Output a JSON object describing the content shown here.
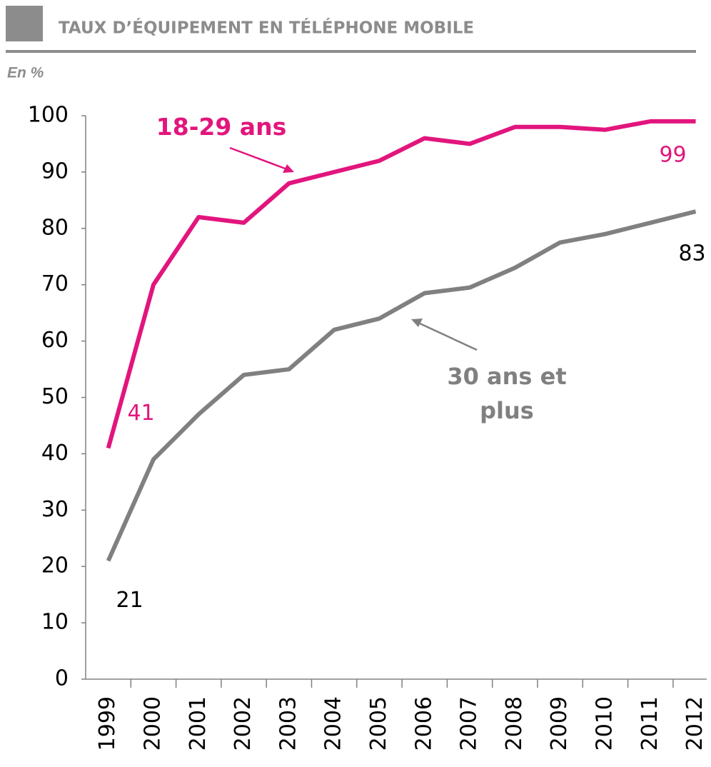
{
  "chart_data": {
    "type": "line",
    "title": "TAUX D’ÉQUIPEMENT EN TÉLÉPHONE MOBILE",
    "y_unit": "En %",
    "categories": [
      "1999",
      "2000",
      "2001",
      "2002",
      "2003",
      "2004",
      "2005",
      "2006",
      "2007",
      "2008",
      "2009",
      "2010",
      "2011",
      "2012"
    ],
    "series": [
      {
        "name": "18-29 ans",
        "color": "#e2157d",
        "values": [
          41,
          70,
          82,
          81,
          88,
          90,
          92,
          96,
          95,
          98,
          98,
          97.5,
          99,
          99
        ]
      },
      {
        "name": "30 ans et plus",
        "color": "#808080",
        "values": [
          21,
          39,
          47,
          54,
          55,
          62,
          64,
          68.5,
          69.5,
          73,
          77.5,
          79,
          81,
          83
        ]
      }
    ],
    "ylim": [
      0,
      100
    ],
    "yticks": [
      0,
      10,
      20,
      30,
      40,
      50,
      60,
      70,
      80,
      90,
      100
    ],
    "grid": false
  }
}
